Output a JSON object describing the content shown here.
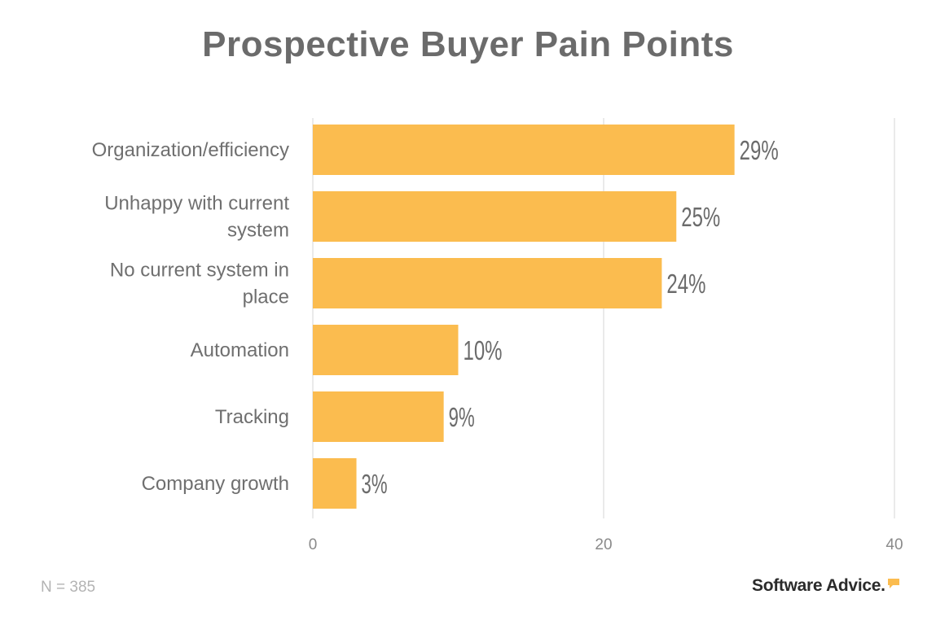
{
  "chart_data": {
    "type": "bar",
    "orientation": "horizontal",
    "title": "Prospective Buyer Pain Points",
    "categories": [
      [
        "Organization/efficiency"
      ],
      [
        "Unhappy with current",
        "system"
      ],
      [
        "No current system in",
        "place"
      ],
      [
        "Automation"
      ],
      [
        "Tracking"
      ],
      [
        "Company growth"
      ]
    ],
    "values": [
      29,
      25,
      24,
      10,
      9,
      3
    ],
    "data_labels": [
      "29%",
      "25%",
      "24%",
      "10%",
      "9%",
      "3%"
    ],
    "xlim": [
      0,
      40
    ],
    "x_ticks": [
      0,
      20,
      40
    ],
    "x_tick_labels": [
      "0",
      "20",
      "40"
    ],
    "grid": true,
    "bar_color": "#FBBC4F",
    "legend": "none"
  },
  "footer": {
    "sample_note": "N = 385",
    "brand": "Software Advice."
  },
  "colors": {
    "title": "#6b6b6b",
    "label": "#6f6f6f",
    "grid": "#e3e3e3",
    "brand_accent": "#FBBC4F"
  }
}
